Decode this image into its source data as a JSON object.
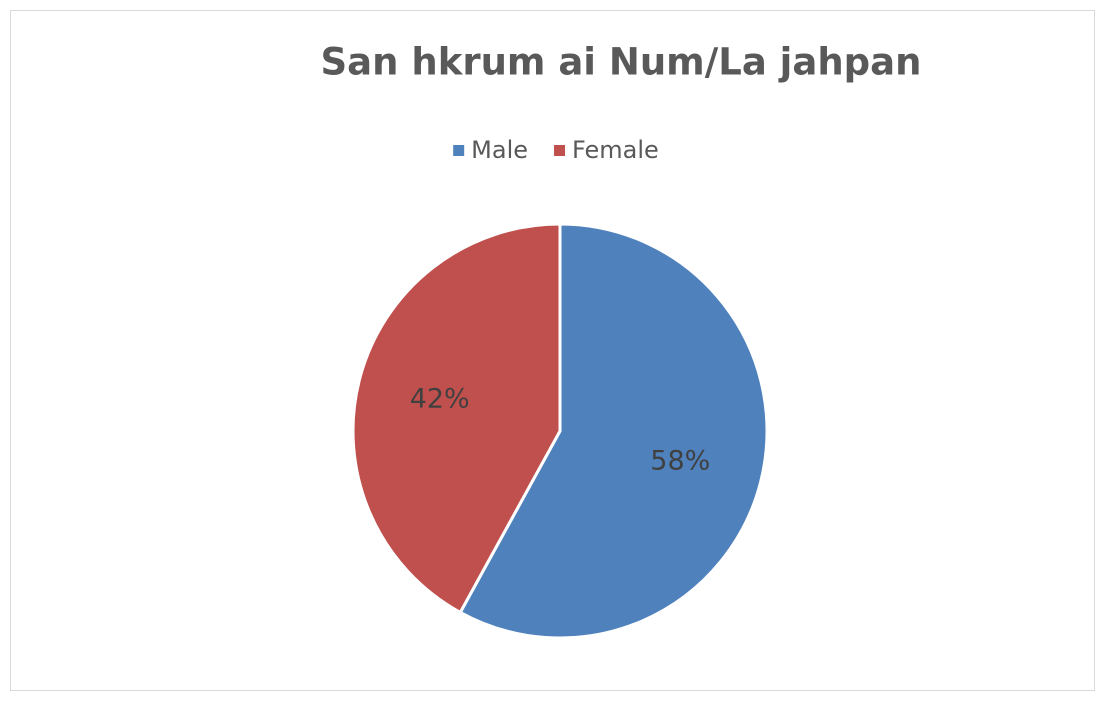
{
  "chart_data": {
    "type": "pie",
    "title": "San hkrum ai Num/La jahpan",
    "categories": [
      "Male",
      "Female"
    ],
    "values": [
      58,
      42
    ],
    "value_labels": [
      "58%",
      "42%"
    ],
    "colors": [
      "#4f81bd",
      "#c0504d"
    ],
    "legend": "top"
  }
}
